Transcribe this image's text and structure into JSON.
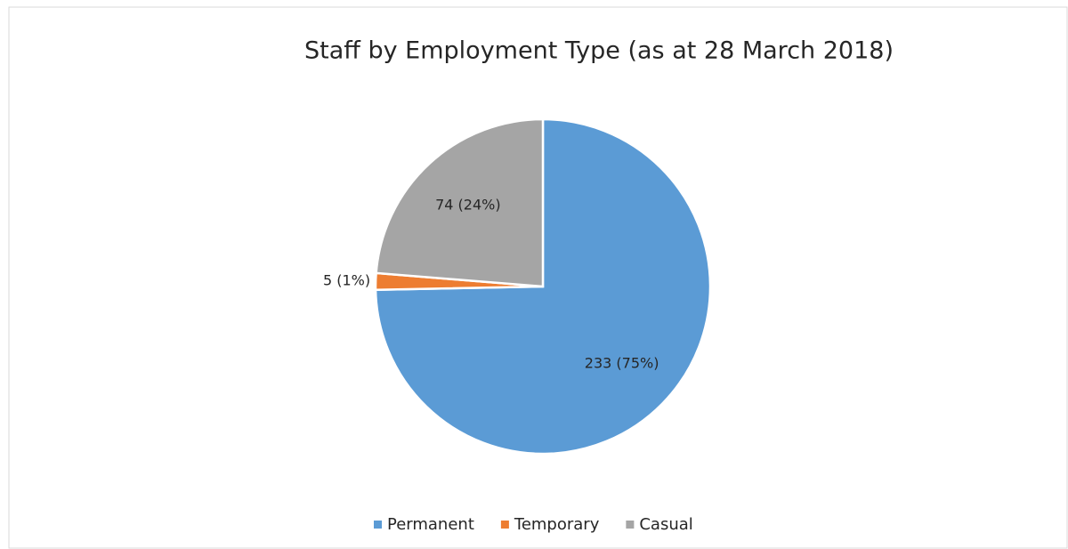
{
  "chart_data": {
    "type": "pie",
    "title": "Staff by Employment Type (as at 28 March 2018)",
    "categories": [
      "Permanent",
      "Temporary",
      "Casual"
    ],
    "values": [
      233,
      5,
      74
    ],
    "value_labels": [
      "233 (75%)",
      "5 (1%)",
      "74 (24%)"
    ],
    "colors": [
      "#5b9bd5",
      "#ed7d31",
      "#a5a5a5"
    ],
    "legend": "bottom"
  }
}
